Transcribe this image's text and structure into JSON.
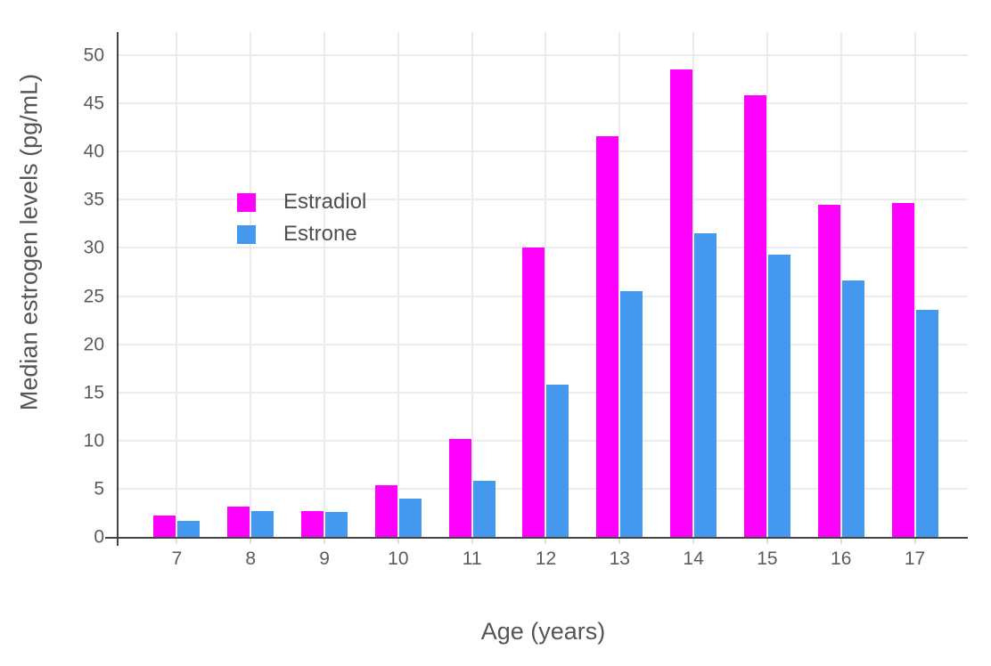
{
  "chart_data": {
    "type": "bar",
    "title": "",
    "xlabel": "Age (years)",
    "ylabel": "Median estrogen levels (pg/mL)",
    "categories": [
      "7",
      "8",
      "9",
      "10",
      "11",
      "12",
      "13",
      "14",
      "15",
      "16",
      "17"
    ],
    "series": [
      {
        "name": "Estradiol",
        "color": "#FF00FF",
        "values": [
          2.2,
          3.1,
          2.7,
          5.4,
          10.2,
          30.0,
          41.6,
          48.5,
          45.8,
          34.5,
          34.7
        ]
      },
      {
        "name": "Estrone",
        "color": "#4499EE",
        "values": [
          1.7,
          2.7,
          2.6,
          4.0,
          5.8,
          15.8,
          25.5,
          31.5,
          29.3,
          26.6,
          23.6
        ]
      }
    ],
    "ylim": [
      0,
      52.4
    ],
    "yticks": [
      0,
      5,
      10,
      15,
      20,
      25,
      30,
      35,
      40,
      45,
      50
    ],
    "grid": true,
    "gridlines": "horizontal-and-vertical-at-category-centers",
    "legend_position": "inside-upper-left",
    "legend_entries": [
      "Estradiol",
      "Estrone"
    ],
    "colors": {
      "axis_line": "#444444",
      "gridline": "#ececec",
      "tick_text": "#5b5b5b",
      "title_text": "#555555",
      "background": "#ffffff"
    }
  }
}
